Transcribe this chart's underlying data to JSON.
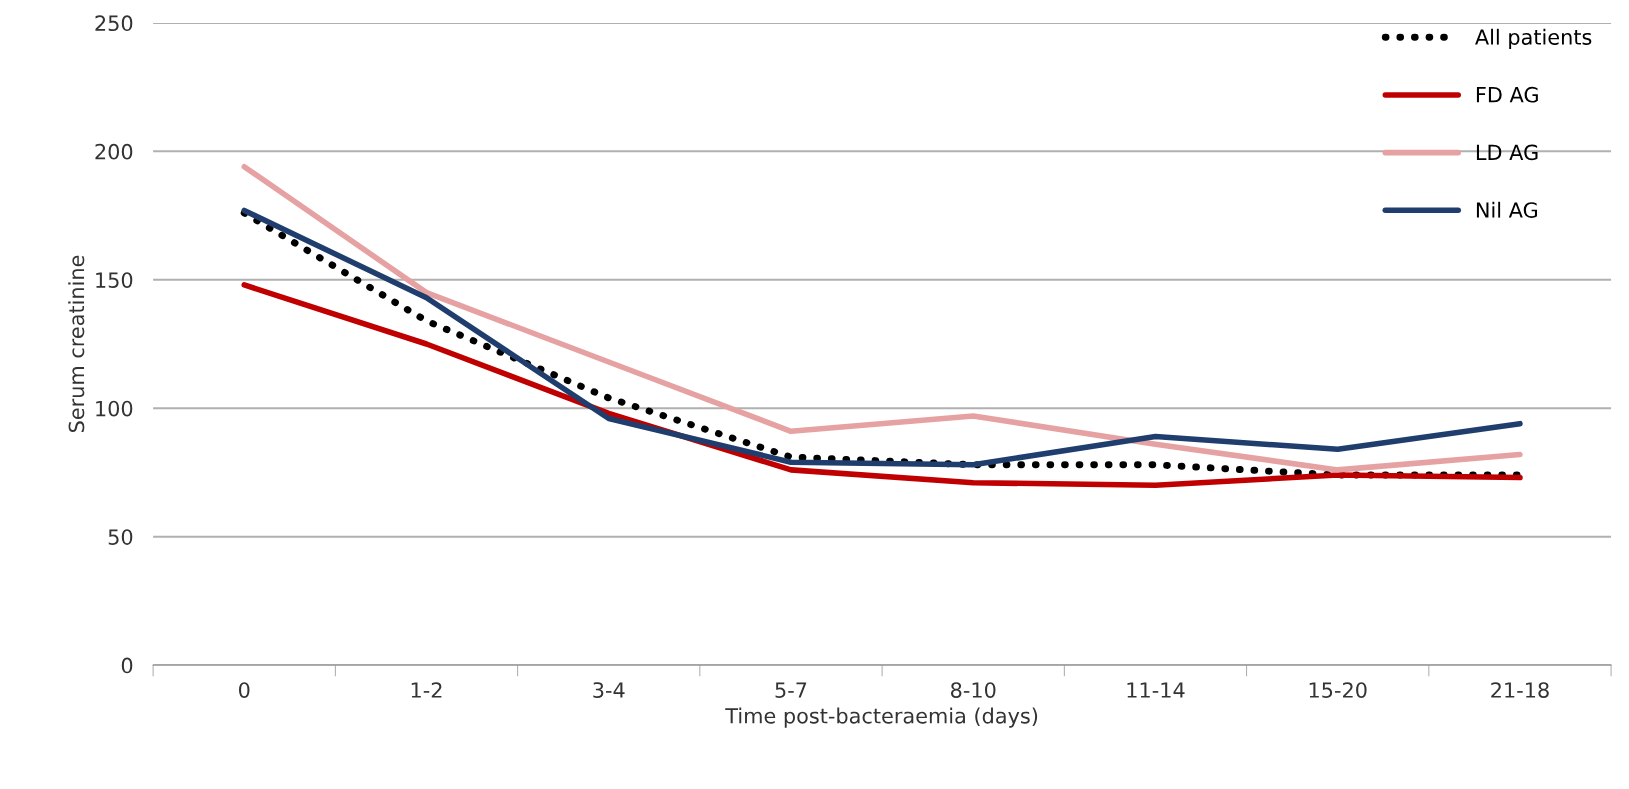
{
  "chart_data": {
    "type": "line",
    "xlabel": "Time post-bacteraemia (days)",
    "ylabel": "Serum creatinine",
    "categories": [
      "0",
      "1-2",
      "3-4",
      "5-7",
      "8-10",
      "11-14",
      "15-20",
      "21-18"
    ],
    "series": [
      {
        "name": "All patients",
        "color": "#000000",
        "line_style": "dotted",
        "values": [
          176,
          134,
          104,
          81,
          78,
          78,
          74,
          74
        ]
      },
      {
        "name": "FD AG",
        "color": "#c00000",
        "line_style": "solid",
        "values": [
          148,
          125,
          98,
          76,
          71,
          70,
          74,
          73
        ]
      },
      {
        "name": "LD AG",
        "color": "#e6a2a2",
        "line_style": "solid",
        "values": [
          194,
          145,
          118,
          91,
          97,
          86,
          76,
          82
        ]
      },
      {
        "name": "Nil AG",
        "color": "#1f3e6e",
        "line_style": "solid",
        "values": [
          177,
          143,
          96,
          79,
          78,
          89,
          84,
          94
        ]
      }
    ],
    "ylim": [
      0,
      250
    ],
    "yticks": [
      0,
      50,
      100,
      150,
      200,
      250
    ],
    "grid": "y",
    "legend": "top right",
    "marker": "none"
  }
}
